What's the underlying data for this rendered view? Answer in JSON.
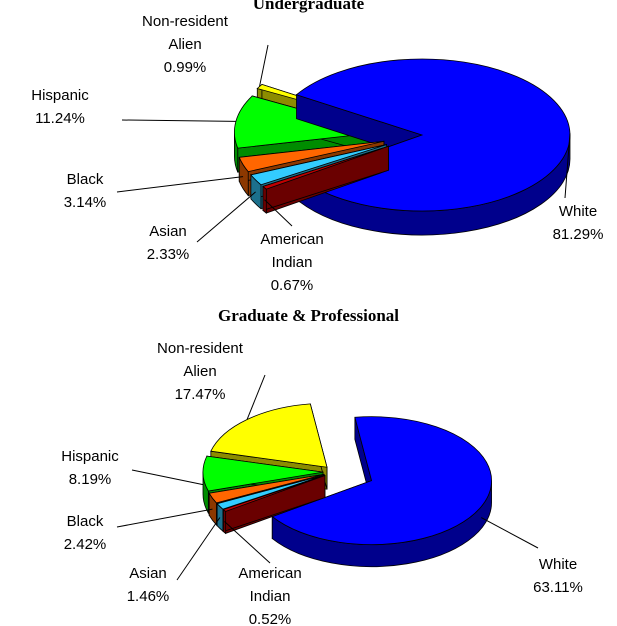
{
  "chart_data": [
    {
      "type": "pie",
      "title": "Undergraduate",
      "categories": [
        "White",
        "American Indian",
        "Asian",
        "Black",
        "Hispanic",
        "Non-resident Alien"
      ],
      "values": [
        81.29,
        0.67,
        2.33,
        3.14,
        11.24,
        0.99
      ],
      "value_labels": [
        "81.29%",
        "0.67%",
        "2.33%",
        "3.14%",
        "11.24%",
        "0.99%"
      ],
      "colors": [
        "#0000ff",
        "#c00000",
        "#33ccff",
        "#ff6600",
        "#00ff00",
        "#ffff00"
      ]
    },
    {
      "type": "pie",
      "title": "Graduate & Professional",
      "categories": [
        "White",
        "American Indian",
        "Asian",
        "Black",
        "Hispanic",
        "Non-resident Alien"
      ],
      "values": [
        63.11,
        0.52,
        1.46,
        2.42,
        8.19,
        17.47
      ],
      "value_labels": [
        "63.11%",
        "0.52%",
        "1.46%",
        "2.42%",
        "8.19%",
        "17.47%"
      ],
      "colors": [
        "#0000ff",
        "#c00000",
        "#33ccff",
        "#ff6600",
        "#00ff00",
        "#ffff00"
      ]
    }
  ]
}
